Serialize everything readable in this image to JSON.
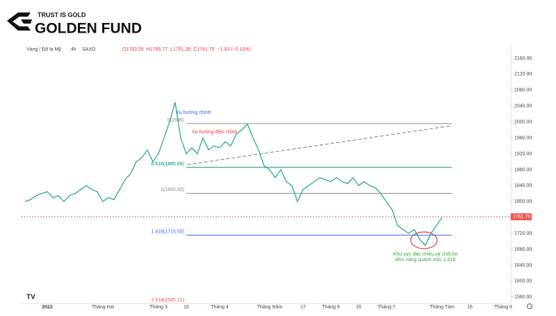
{
  "logo": {
    "tagline": "TRUST IS GOLD",
    "name": "GOLDEN FUND"
  },
  "header": {
    "symbol": "Vàng / Đô la Mỹ",
    "interval": "4h",
    "exchange": "SAXO",
    "ohlc": [
      "O1763.55",
      "H1765.77",
      "L1761.39",
      "C1761.76",
      "−1.83 (−0.10%)"
    ]
  },
  "chart_data": {
    "type": "line",
    "categories": [
      null,
      null,
      null,
      null,
      "2022",
      null,
      null,
      null,
      null,
      null,
      null,
      null,
      null,
      null,
      "Tháng Hai",
      null,
      null,
      null,
      null,
      null,
      null,
      null,
      null,
      null,
      "Tháng 3",
      null,
      null,
      null,
      null,
      "16",
      null,
      null,
      null,
      null,
      null,
      "Tháng 4",
      null,
      null,
      null,
      null,
      null,
      null,
      null,
      null,
      "Tháng Năm",
      null,
      null,
      null,
      null,
      null,
      "17",
      null,
      null,
      null,
      null,
      "Tháng 6",
      null,
      null,
      null,
      null,
      "16",
      null,
      null,
      null,
      null,
      "Tháng 7",
      null,
      null,
      null,
      null,
      null,
      null,
      null,
      null,
      null,
      "Tháng Tám",
      null,
      null,
      null,
      null,
      "16",
      null,
      null,
      null,
      null,
      null,
      "Tháng 9"
    ],
    "series": [
      {
        "name": "XAUUSD",
        "color": "#26a69a",
        "values": [
          1800,
          1805,
          1815,
          1820,
          1825,
          1810,
          1815,
          1800,
          1815,
          1820,
          1830,
          1840,
          1830,
          1825,
          1800,
          1810,
          1805,
          1830,
          1855,
          1870,
          1900,
          1910,
          1930,
          1900,
          1920,
          1960,
          2000,
          2050,
          1960,
          1920,
          1935,
          1920,
          1960,
          1930,
          1940,
          1935,
          1950,
          1940,
          1970,
          1980,
          1995,
          1960,
          1930,
          1890,
          1880,
          1860,
          1880,
          1850,
          1840,
          1800,
          1830,
          1840,
          1850,
          1860,
          1855,
          1850,
          1860,
          1850,
          1845,
          1860,
          1840,
          1850,
          1840,
          1835,
          1820,
          1800,
          1780,
          1740,
          1730,
          1720,
          1730,
          1705,
          1690,
          1720,
          1740,
          1760,
          null,
          null,
          null,
          null,
          null,
          null,
          null,
          null,
          null,
          null,
          null
        ]
      }
    ],
    "ylim": [
      1544,
      2193
    ],
    "yticks": [
      {
        "value": 1560,
        "label": "1560.00"
      },
      {
        "value": 1600,
        "label": "1600.00"
      },
      {
        "value": 1640,
        "label": "1640.00"
      },
      {
        "value": 1680,
        "label": "1680.00"
      },
      {
        "value": 1720,
        "label": "1720.00"
      },
      {
        "value": 1760,
        "label": "1760.00"
      },
      {
        "value": 1800,
        "label": "1800.00"
      },
      {
        "value": 1840,
        "label": "1840.00"
      },
      {
        "value": 1880,
        "label": "1880.00"
      },
      {
        "value": 1920,
        "label": "1920.00"
      },
      {
        "value": 1960,
        "label": "1960.00"
      },
      {
        "value": 2000,
        "label": "2000.00"
      },
      {
        "value": 2040,
        "label": "2040.00"
      },
      {
        "value": 2080,
        "label": "2080.00"
      },
      {
        "value": 2120,
        "label": "2120.00"
      },
      {
        "value": 2160,
        "label": "2160.00"
      }
    ],
    "levels": [
      {
        "value": 1996,
        "label": "0(1996)",
        "color": "#888888"
      },
      {
        "value": 1885.89,
        "label": "0.618(1885.89)",
        "color": "#00897b"
      },
      {
        "value": 1820.82,
        "label": "1(1820.82)",
        "color": "#888888"
      },
      {
        "value": 1715.55,
        "label": "1.618(1715.55)",
        "color": "#2962ff"
      },
      {
        "value": 1545.21,
        "label": "2.618(1545.21)",
        "color": "#ef5350"
      }
    ],
    "last": {
      "value": 1761.76,
      "label": "1761.76",
      "color": "#ef5350"
    },
    "annotations": [
      "Xu hướng chính",
      "Xu hướng điều chỉnh",
      "Khu vực đảo chiều và chốt lời",
      "tiềm năng quanh mốc 1,618"
    ]
  }
}
